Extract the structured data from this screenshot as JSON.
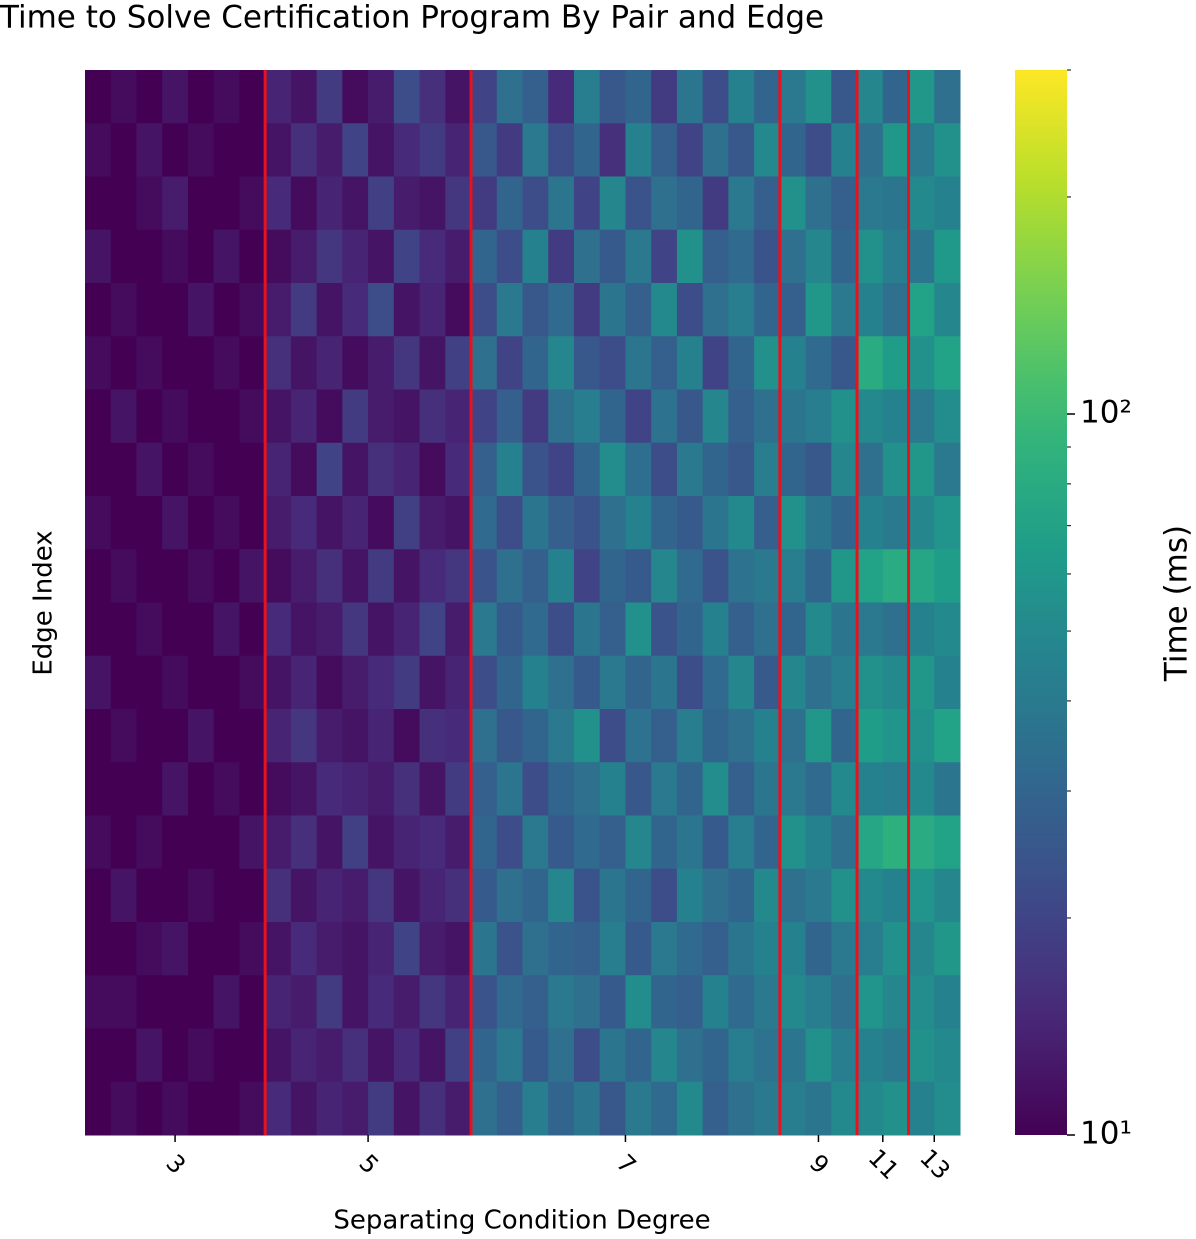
{
  "chart_data": {
    "type": "heatmap",
    "title": "Time to Solve Certification Program By Pair and Edge",
    "xlabel": "Separating Condition Degree",
    "ylabel": "Edge Index",
    "colorbar_label": "Time (ms)",
    "colormap": "viridis",
    "log_color": true,
    "clim": [
      10,
      300
    ],
    "cticks": [
      {
        "value": 10,
        "label": "10¹"
      },
      {
        "value": 100,
        "label": "10²"
      }
    ],
    "cminorticks": [
      20,
      30,
      40,
      50,
      60,
      70,
      80,
      90,
      200,
      300
    ],
    "xlim": [
      0,
      34
    ],
    "ylim": [
      0,
      20
    ],
    "xticks": [
      {
        "value": 3.5,
        "label": "3"
      },
      {
        "value": 11,
        "label": "5"
      },
      {
        "value": 21,
        "label": "7"
      },
      {
        "value": 28.5,
        "label": "9"
      },
      {
        "value": 31,
        "label": "11"
      },
      {
        "value": 33,
        "label": "13"
      }
    ],
    "vlines": [
      7,
      15,
      27,
      30,
      32
    ],
    "vline_color": "#e8121f",
    "values": [
      [
        10,
        11,
        10,
        12,
        10,
        11,
        10,
        14,
        12,
        18,
        11,
        13,
        22,
        16,
        12,
        20,
        35,
        28,
        15,
        42,
        25,
        30,
        18,
        38,
        22,
        45,
        30,
        40,
        55,
        25,
        48,
        30,
        60,
        35
      ],
      [
        11,
        10,
        12,
        10,
        11,
        10,
        10,
        12,
        16,
        13,
        20,
        12,
        15,
        18,
        14,
        25,
        18,
        40,
        22,
        30,
        16,
        45,
        28,
        20,
        35,
        25,
        50,
        30,
        22,
        45,
        35,
        60,
        40,
        55
      ],
      [
        10,
        10,
        11,
        13,
        10,
        10,
        11,
        15,
        11,
        14,
        12,
        19,
        13,
        12,
        17,
        18,
        30,
        22,
        38,
        20,
        48,
        24,
        35,
        30,
        18,
        40,
        28,
        55,
        35,
        28,
        40,
        38,
        50,
        45
      ],
      [
        12,
        10,
        10,
        11,
        10,
        12,
        10,
        11,
        13,
        17,
        14,
        12,
        20,
        15,
        13,
        30,
        22,
        45,
        18,
        35,
        26,
        40,
        20,
        55,
        28,
        32,
        24,
        35,
        48,
        30,
        55,
        42,
        38,
        62
      ],
      [
        10,
        11,
        10,
        10,
        12,
        10,
        11,
        13,
        18,
        12,
        15,
        22,
        12,
        14,
        11,
        22,
        40,
        25,
        32,
        18,
        38,
        28,
        50,
        22,
        35,
        42,
        30,
        28,
        60,
        40,
        45,
        35,
        70,
        48
      ],
      [
        11,
        10,
        11,
        10,
        10,
        11,
        10,
        16,
        12,
        14,
        11,
        13,
        17,
        12,
        19,
        35,
        20,
        30,
        48,
        25,
        22,
        38,
        28,
        45,
        20,
        30,
        55,
        45,
        32,
        25,
        80,
        65,
        55,
        70
      ],
      [
        10,
        12,
        10,
        11,
        10,
        10,
        11,
        12,
        14,
        11,
        18,
        13,
        12,
        16,
        14,
        20,
        28,
        18,
        35,
        42,
        30,
        20,
        36,
        25,
        48,
        28,
        35,
        38,
        42,
        55,
        50,
        45,
        40,
        52
      ],
      [
        10,
        10,
        12,
        10,
        11,
        10,
        10,
        14,
        11,
        20,
        12,
        16,
        14,
        11,
        15,
        28,
        45,
        24,
        20,
        30,
        52,
        34,
        22,
        40,
        30,
        25,
        42,
        30,
        25,
        48,
        35,
        55,
        60,
        40
      ],
      [
        11,
        10,
        10,
        12,
        10,
        11,
        10,
        13,
        15,
        12,
        14,
        11,
        19,
        13,
        12,
        32,
        22,
        38,
        28,
        24,
        35,
        45,
        30,
        26,
        38,
        50,
        28,
        55,
        38,
        30,
        45,
        40,
        48,
        58
      ],
      [
        10,
        11,
        10,
        10,
        11,
        10,
        12,
        11,
        13,
        16,
        12,
        18,
        12,
        15,
        17,
        24,
        35,
        28,
        45,
        20,
        30,
        26,
        48,
        32,
        24,
        36,
        40,
        42,
        30,
        60,
        70,
        80,
        75,
        65
      ],
      [
        10,
        10,
        11,
        10,
        10,
        12,
        10,
        15,
        12,
        13,
        17,
        12,
        14,
        20,
        13,
        40,
        26,
        32,
        22,
        38,
        28,
        55,
        24,
        30,
        45,
        28,
        35,
        30,
        50,
        38,
        40,
        35,
        45,
        50
      ],
      [
        12,
        10,
        10,
        11,
        10,
        10,
        11,
        12,
        14,
        11,
        13,
        15,
        18,
        12,
        14,
        22,
        30,
        45,
        35,
        26,
        40,
        30,
        38,
        22,
        32,
        48,
        26,
        48,
        35,
        42,
        55,
        50,
        60,
        45
      ],
      [
        10,
        11,
        10,
        10,
        12,
        10,
        10,
        14,
        17,
        13,
        12,
        14,
        11,
        16,
        15,
        35,
        25,
        30,
        40,
        55,
        22,
        36,
        28,
        42,
        30,
        35,
        45,
        35,
        60,
        30,
        65,
        58,
        55,
        70
      ],
      [
        10,
        10,
        10,
        12,
        10,
        11,
        10,
        11,
        12,
        15,
        14,
        13,
        16,
        12,
        18,
        28,
        38,
        22,
        30,
        35,
        45,
        25,
        40,
        30,
        52,
        28,
        38,
        40,
        32,
        50,
        45,
        42,
        50,
        38
      ],
      [
        11,
        10,
        11,
        10,
        10,
        10,
        12,
        13,
        16,
        12,
        19,
        12,
        14,
        15,
        13,
        30,
        22,
        40,
        26,
        32,
        28,
        48,
        30,
        38,
        26,
        42,
        30,
        55,
        45,
        35,
        75,
        85,
        80,
        70
      ],
      [
        10,
        12,
        10,
        10,
        11,
        10,
        10,
        16,
        12,
        14,
        13,
        17,
        12,
        14,
        16,
        26,
        35,
        30,
        48,
        24,
        38,
        30,
        22,
        45,
        35,
        30,
        50,
        35,
        40,
        55,
        50,
        45,
        58,
        48
      ],
      [
        10,
        10,
        11,
        12,
        10,
        10,
        11,
        12,
        15,
        13,
        12,
        14,
        20,
        13,
        12,
        38,
        24,
        35,
        30,
        28,
        42,
        26,
        40,
        32,
        28,
        38,
        45,
        45,
        30,
        40,
        42,
        55,
        48,
        60
      ],
      [
        11,
        11,
        10,
        10,
        10,
        12,
        10,
        14,
        13,
        18,
        12,
        15,
        13,
        17,
        14,
        24,
        32,
        28,
        40,
        35,
        26,
        52,
        30,
        28,
        45,
        32,
        40,
        50,
        42,
        35,
        58,
        48,
        52,
        45
      ],
      [
        10,
        10,
        12,
        10,
        11,
        10,
        10,
        12,
        14,
        13,
        16,
        12,
        15,
        12,
        19,
        30,
        40,
        26,
        35,
        22,
        38,
        30,
        48,
        35,
        30,
        42,
        36,
        38,
        55,
        42,
        45,
        40,
        55,
        50
      ],
      [
        10,
        11,
        10,
        11,
        10,
        10,
        11,
        15,
        12,
        14,
        13,
        18,
        12,
        16,
        13,
        35,
        28,
        42,
        30,
        38,
        25,
        40,
        32,
        50,
        28,
        35,
        40,
        42,
        38,
        50,
        50,
        55,
        45,
        52
      ]
    ]
  }
}
